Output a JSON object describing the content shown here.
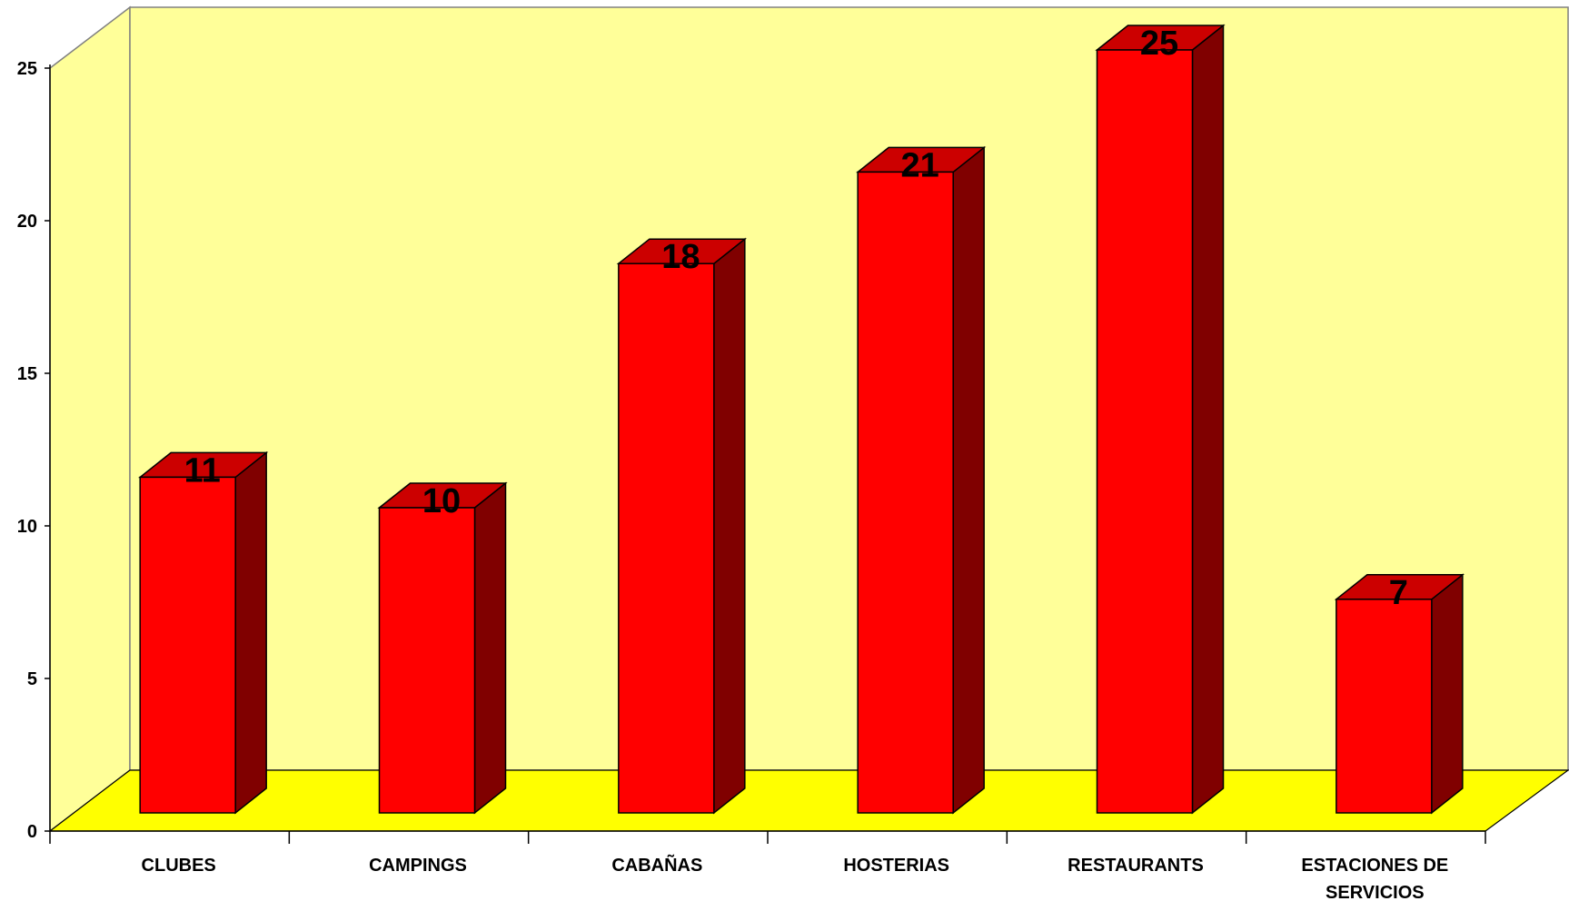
{
  "chart_data": {
    "type": "bar",
    "categories": [
      [
        "CLUBES"
      ],
      [
        "CAMPINGS"
      ],
      [
        "CABAÑAS"
      ],
      [
        "HOSTERIAS"
      ],
      [
        "RESTAURANTS"
      ],
      [
        "ESTACIONES DE",
        "SERVICIOS"
      ]
    ],
    "values": [
      11,
      10,
      18,
      21,
      25,
      7
    ],
    "data_labels": [
      "11",
      "10",
      "18",
      "21",
      "25",
      "7"
    ],
    "y_ticks": [
      "0",
      "5",
      "10",
      "15",
      "20",
      "25"
    ],
    "ylim": [
      0,
      25
    ],
    "grid": false,
    "legend": "none",
    "three_d": true,
    "colors": {
      "wall": "#ffff99",
      "floor": "#ffff00",
      "bar_front": "#ff0000",
      "bar_top": "#cc0000",
      "bar_side": "#800000",
      "outline": "#000000",
      "frame": "#808080"
    }
  }
}
